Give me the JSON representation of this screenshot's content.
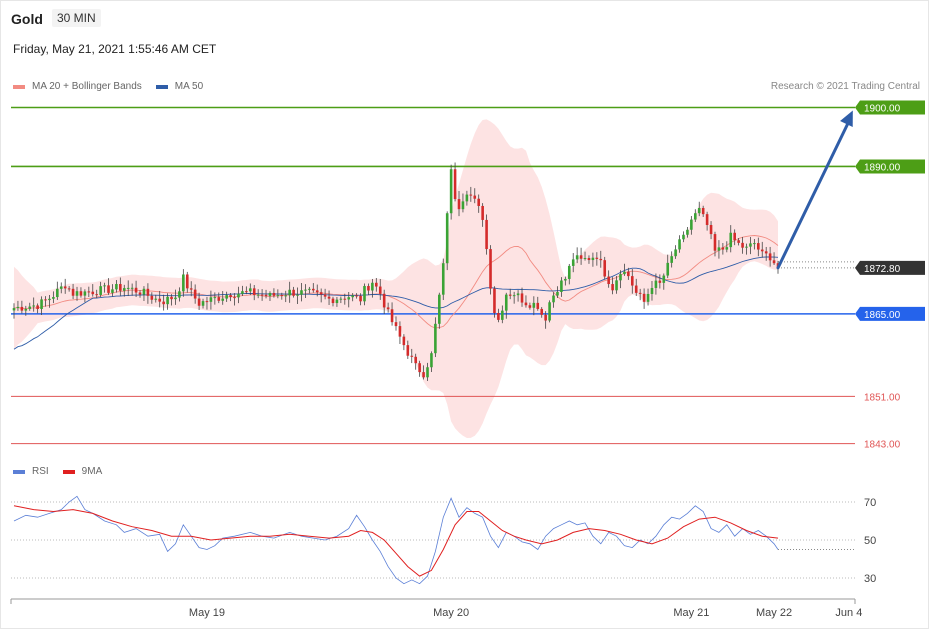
{
  "header": {
    "symbol": "Gold",
    "timeframe": "30 MIN",
    "datetime": "Friday, May 21, 2021 1:55:46 AM CET"
  },
  "legend": {
    "items": [
      {
        "label": "MA 20 + Bollinger Bands",
        "color": "#f28b82"
      },
      {
        "label": "MA 50",
        "color": "#2f5da8"
      }
    ]
  },
  "credit": "Research © 2021 Trading Central",
  "rsi_legend": {
    "items": [
      {
        "label": "RSI",
        "color": "#5b7fd6"
      },
      {
        "label": "9MA",
        "color": "#e02020"
      }
    ]
  },
  "colors": {
    "bull": "#3aa335",
    "bear": "#d42b2b",
    "band": "#fde3e3",
    "ma20": "#f28b82",
    "ma50": "#2f5da8",
    "resistance": "#4d9e16",
    "support": "#2563eb",
    "support_red": "#e05555",
    "current": "#333333",
    "arrow": "#2f5da8"
  },
  "chart_data": [
    {
      "type": "candlestick",
      "title": "Gold",
      "timeframe": "30 MIN",
      "ylim": [
        1839,
        1903
      ],
      "x_ticks": [
        {
          "label": "May 19",
          "index": 49
        },
        {
          "label": "May 20",
          "index": 111
        },
        {
          "label": "May 21",
          "index": 172
        },
        {
          "label": "May 22",
          "index": 193
        },
        {
          "label": "Jun 4",
          "index": 212
        }
      ],
      "levels": [
        {
          "value": 1900.0,
          "label": "1900.00",
          "kind": "resistance"
        },
        {
          "value": 1890.0,
          "label": "1890.00",
          "kind": "resistance"
        },
        {
          "value": 1872.8,
          "label": "1872.80",
          "kind": "current"
        },
        {
          "value": 1865.0,
          "label": "1865.00",
          "kind": "support"
        },
        {
          "value": 1851.0,
          "label": "1851.00",
          "kind": "support_red"
        },
        {
          "value": 1843.0,
          "label": "1843.00",
          "kind": "support_red"
        }
      ],
      "projection": {
        "from_index": 194,
        "from_value": 1872.8,
        "to_index": 213,
        "to_value": 1899.5
      },
      "anchors": [
        [
          0,
          1866.0
        ],
        [
          6,
          1866.5
        ],
        [
          8,
          1867.2
        ],
        [
          10,
          1868.2
        ],
        [
          13,
          1870.0
        ],
        [
          15,
          1868.5
        ],
        [
          22,
          1869.0
        ],
        [
          28,
          1869.5
        ],
        [
          32,
          1868.8
        ],
        [
          36,
          1867.5
        ],
        [
          38,
          1867.2
        ],
        [
          41,
          1868.0
        ],
        [
          43,
          1871.0
        ],
        [
          45,
          1868.5
        ],
        [
          47,
          1866.8
        ],
        [
          49,
          1867.2
        ],
        [
          52,
          1867.8
        ],
        [
          55,
          1868.5
        ],
        [
          60,
          1868.6
        ],
        [
          65,
          1868.0
        ],
        [
          70,
          1868.7
        ],
        [
          75,
          1868.5
        ],
        [
          80,
          1867.5
        ],
        [
          85,
          1868.0
        ],
        [
          88,
          1867.5
        ],
        [
          89,
          1869.0
        ],
        [
          91,
          1870.5
        ],
        [
          93,
          1868.5
        ],
        [
          95,
          1865.0
        ],
        [
          98,
          1861.0
        ],
        [
          100,
          1858.5
        ],
        [
          102,
          1856.0
        ],
        [
          104,
          1855.0
        ],
        [
          106,
          1858.0
        ],
        [
          107,
          1863.0
        ],
        [
          108,
          1868.0
        ],
        [
          109,
          1873.0
        ],
        [
          110,
          1882.5
        ],
        [
          111,
          1889.0
        ],
        [
          112,
          1885.0
        ],
        [
          113,
          1883.5
        ],
        [
          115,
          1886.0
        ],
        [
          117,
          1884.0
        ],
        [
          119,
          1881.5
        ],
        [
          120,
          1876.0
        ],
        [
          121,
          1870.0
        ],
        [
          122,
          1865.5
        ],
        [
          123,
          1864.0
        ],
        [
          125,
          1868.5
        ],
        [
          127,
          1868.5
        ],
        [
          130,
          1867.0
        ],
        [
          133,
          1866.5
        ],
        [
          134,
          1865.0
        ],
        [
          135,
          1864.5
        ],
        [
          136,
          1867.0
        ],
        [
          138,
          1869.5
        ],
        [
          140,
          1871.0
        ],
        [
          142,
          1874.5
        ],
        [
          144,
          1874.0
        ],
        [
          148,
          1875.0
        ],
        [
          150,
          1872.0
        ],
        [
          152,
          1869.5
        ],
        [
          154,
          1872.5
        ],
        [
          156,
          1871.5
        ],
        [
          158,
          1868.5
        ],
        [
          160,
          1867.0
        ],
        [
          162,
          1870.0
        ],
        [
          164,
          1870.0
        ],
        [
          166,
          1873.0
        ],
        [
          168,
          1876.0
        ],
        [
          170,
          1877.8
        ],
        [
          172,
          1881.0
        ],
        [
          174,
          1882.5
        ],
        [
          176,
          1880.0
        ],
        [
          178,
          1875.5
        ],
        [
          180,
          1876.0
        ],
        [
          182,
          1878.0
        ],
        [
          184,
          1876.8
        ],
        [
          186,
          1876.0
        ],
        [
          188,
          1877.0
        ],
        [
          190,
          1875.0
        ],
        [
          192,
          1874.8
        ],
        [
          194,
          1872.8
        ]
      ]
    },
    {
      "type": "line",
      "title": "RSI",
      "ylim": [
        22,
        78
      ],
      "y_ticks": [
        70,
        50,
        30
      ],
      "series": [
        {
          "name": "RSI",
          "color": "#5b7fd6",
          "points": [
            [
              0,
              60
            ],
            [
              3,
              63
            ],
            [
              6,
              62
            ],
            [
              9,
              64
            ],
            [
              12,
              66
            ],
            [
              14,
              70
            ],
            [
              16,
              73
            ],
            [
              18,
              66
            ],
            [
              20,
              64
            ],
            [
              23,
              60
            ],
            [
              26,
              58
            ],
            [
              28,
              54
            ],
            [
              31,
              56
            ],
            [
              34,
              52
            ],
            [
              37,
              53
            ],
            [
              39,
              44
            ],
            [
              41,
              48
            ],
            [
              43,
              58
            ],
            [
              45,
              52
            ],
            [
              47,
              46
            ],
            [
              49,
              45
            ],
            [
              51,
              47
            ],
            [
              53,
              51
            ],
            [
              56,
              52
            ],
            [
              60,
              54
            ],
            [
              63,
              52
            ],
            [
              66,
              51
            ],
            [
              70,
              54
            ],
            [
              73,
              52
            ],
            [
              76,
              51
            ],
            [
              79,
              50
            ],
            [
              82,
              52
            ],
            [
              85,
              56
            ],
            [
              87,
              63
            ],
            [
              89,
              57
            ],
            [
              91,
              50
            ],
            [
              93,
              44
            ],
            [
              95,
              36
            ],
            [
              97,
              30
            ],
            [
              99,
              27
            ],
            [
              101,
              29
            ],
            [
              103,
              27
            ],
            [
              105,
              31
            ],
            [
              107,
              44
            ],
            [
              109,
              62
            ],
            [
              111,
              72
            ],
            [
              113,
              62
            ],
            [
              115,
              67
            ],
            [
              117,
              64
            ],
            [
              119,
              62
            ],
            [
              121,
              52
            ],
            [
              123,
              46
            ],
            [
              125,
              54
            ],
            [
              127,
              52
            ],
            [
              129,
              49
            ],
            [
              131,
              48
            ],
            [
              133,
              45
            ],
            [
              135,
              52
            ],
            [
              137,
              56
            ],
            [
              139,
              58
            ],
            [
              141,
              60
            ],
            [
              143,
              58
            ],
            [
              145,
              59
            ],
            [
              147,
              52
            ],
            [
              149,
              48
            ],
            [
              151,
              54
            ],
            [
              153,
              52
            ],
            [
              155,
              47
            ],
            [
              157,
              46
            ],
            [
              159,
              50
            ],
            [
              161,
              48
            ],
            [
              163,
              52
            ],
            [
              165,
              58
            ],
            [
              167,
              62
            ],
            [
              169,
              61
            ],
            [
              171,
              64
            ],
            [
              173,
              68
            ],
            [
              175,
              65
            ],
            [
              177,
              56
            ],
            [
              179,
              54
            ],
            [
              181,
              58
            ],
            [
              183,
              52
            ],
            [
              185,
              56
            ],
            [
              187,
              53
            ],
            [
              189,
              55
            ],
            [
              191,
              52
            ],
            [
              193,
              48
            ],
            [
              194,
              45
            ]
          ]
        },
        {
          "name": "9MA",
          "color": "#e02020",
          "points": [
            [
              0,
              68
            ],
            [
              5,
              66
            ],
            [
              10,
              65
            ],
            [
              15,
              66
            ],
            [
              20,
              64
            ],
            [
              25,
              60
            ],
            [
              30,
              57
            ],
            [
              35,
              55
            ],
            [
              40,
              52
            ],
            [
              45,
              52
            ],
            [
              50,
              50
            ],
            [
              55,
              51
            ],
            [
              60,
              52
            ],
            [
              65,
              52
            ],
            [
              70,
              53
            ],
            [
              75,
              52
            ],
            [
              80,
              51
            ],
            [
              85,
              52
            ],
            [
              88,
              55
            ],
            [
              91,
              54
            ],
            [
              94,
              50
            ],
            [
              97,
              43
            ],
            [
              100,
              36
            ],
            [
              103,
              31
            ],
            [
              106,
              34
            ],
            [
              109,
              45
            ],
            [
              112,
              58
            ],
            [
              115,
              65
            ],
            [
              118,
              65
            ],
            [
              121,
              60
            ],
            [
              124,
              55
            ],
            [
              127,
              52
            ],
            [
              130,
              50
            ],
            [
              134,
              48
            ],
            [
              138,
              50
            ],
            [
              142,
              54
            ],
            [
              146,
              56
            ],
            [
              150,
              55
            ],
            [
              154,
              53
            ],
            [
              158,
              50
            ],
            [
              162,
              48
            ],
            [
              166,
              51
            ],
            [
              170,
              57
            ],
            [
              174,
              61
            ],
            [
              178,
              62
            ],
            [
              182,
              59
            ],
            [
              186,
              55
            ],
            [
              190,
              52
            ],
            [
              194,
              51
            ]
          ]
        }
      ]
    }
  ],
  "level_labels": [
    "1900.00",
    "1890.00",
    "1872.80",
    "1865.00",
    "1851.00",
    "1843.00"
  ],
  "x_labels": [
    "May 19",
    "May 20",
    "May 21",
    "May 22",
    "Jun 4"
  ],
  "rsi_ticks": [
    "70",
    "50",
    "30"
  ]
}
